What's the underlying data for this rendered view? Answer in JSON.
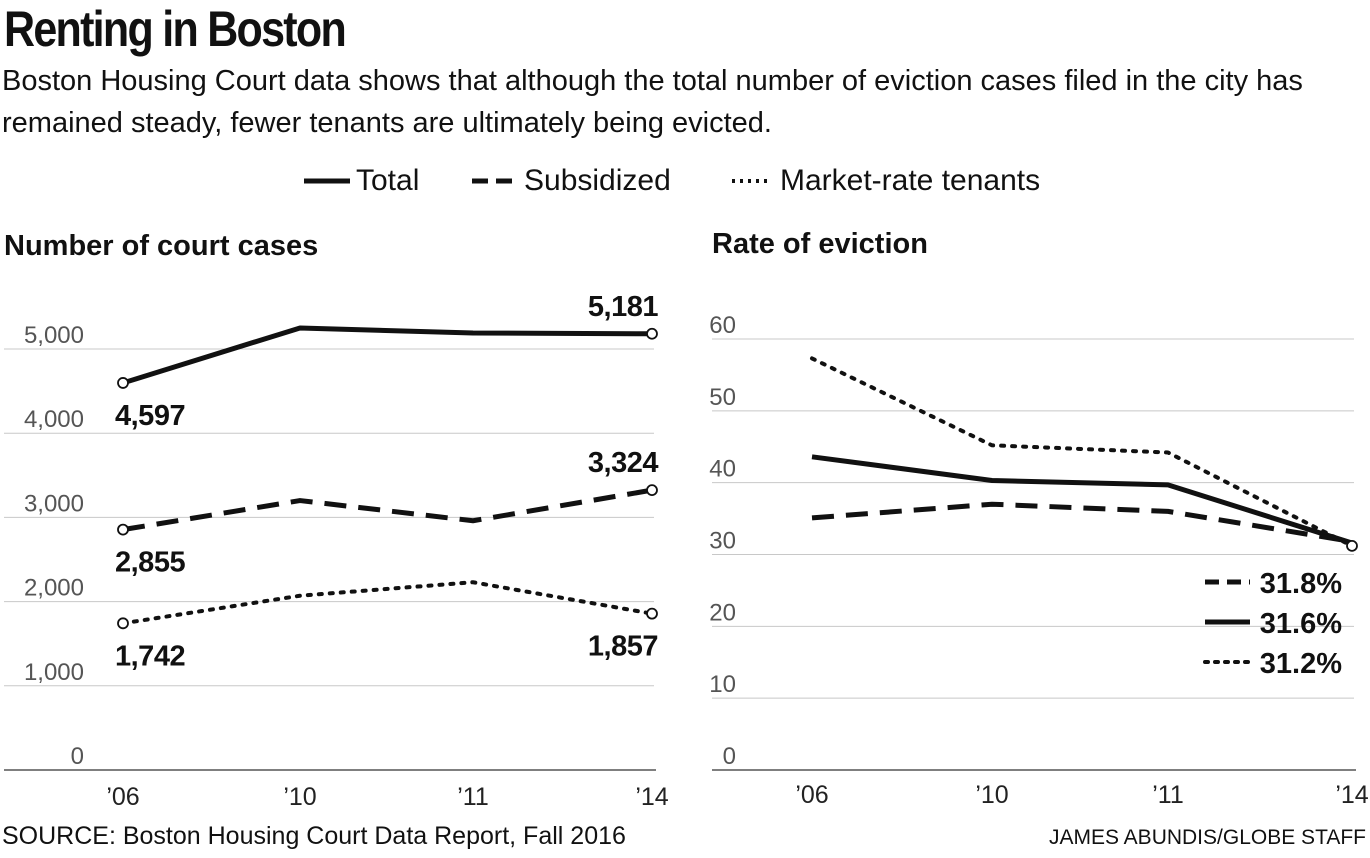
{
  "title": "Renting in Boston",
  "subtitle": "Boston Housing Court data shows that although the total number of eviction cases filed in the city has remained steady, fewer tenants are ultimately being evicted.",
  "legend": [
    {
      "label": "Total",
      "style": "solid"
    },
    {
      "label": "Subsidized",
      "style": "dashed"
    },
    {
      "label": "Market-rate tenants",
      "style": "dotted"
    }
  ],
  "source": "SOURCE: Boston Housing Court Data Report, Fall 2016",
  "credit": "JAMES ABUNDIS/GLOBE STAFF",
  "colors": {
    "line": "#111111",
    "grid": "#c8c8c8",
    "axis": "#555555"
  },
  "chart_data": [
    {
      "type": "line",
      "title": "Number of court cases",
      "categories": [
        "’06",
        "’10",
        "’11",
        "’14"
      ],
      "ylim": [
        0,
        5000
      ],
      "yticks": [
        0,
        1000,
        2000,
        3000,
        4000,
        5000
      ],
      "ytick_labels": [
        "0",
        "1,000",
        "2,000",
        "3,000",
        "4,000",
        "5,000"
      ],
      "grid": true,
      "series": [
        {
          "name": "Total",
          "style": "solid",
          "values": [
            4597,
            5250,
            5190,
            5181
          ]
        },
        {
          "name": "Subsidized",
          "style": "dashed",
          "values": [
            2855,
            3200,
            2960,
            3324
          ]
        },
        {
          "name": "Market-rate tenants",
          "style": "dotted",
          "values": [
            1742,
            2070,
            2230,
            1857
          ]
        }
      ],
      "annotations": [
        {
          "series": 0,
          "index": 0,
          "text": "4,597",
          "pos": "below"
        },
        {
          "series": 0,
          "index": 3,
          "text": "5,181",
          "pos": "above"
        },
        {
          "series": 1,
          "index": 0,
          "text": "2,855",
          "pos": "below"
        },
        {
          "series": 1,
          "index": 3,
          "text": "3,324",
          "pos": "above"
        },
        {
          "series": 2,
          "index": 0,
          "text": "1,742",
          "pos": "below"
        },
        {
          "series": 2,
          "index": 3,
          "text": "1,857",
          "pos": "below"
        }
      ]
    },
    {
      "type": "line",
      "title": "Rate of eviction",
      "categories": [
        "’06",
        "’10",
        "’11",
        "’14"
      ],
      "ylim": [
        0,
        60
      ],
      "yticks": [
        0,
        10,
        20,
        30,
        40,
        50,
        60
      ],
      "ytick_labels": [
        "0",
        "10",
        "20",
        "30",
        "40",
        "50",
        "60"
      ],
      "grid": true,
      "series": [
        {
          "name": "Total",
          "style": "solid",
          "values": [
            43.6,
            40.3,
            39.7,
            31.6
          ]
        },
        {
          "name": "Subsidized",
          "style": "dashed",
          "values": [
            35.1,
            37.0,
            36.0,
            31.8
          ]
        },
        {
          "name": "Market-rate tenants",
          "style": "dotted",
          "values": [
            57.3,
            45.2,
            44.2,
            31.2
          ]
        }
      ],
      "end_labels": [
        {
          "style": "dashed",
          "text": "31.8%"
        },
        {
          "style": "solid",
          "text": "31.6%"
        },
        {
          "style": "dotted",
          "text": "31.2%"
        }
      ]
    }
  ]
}
